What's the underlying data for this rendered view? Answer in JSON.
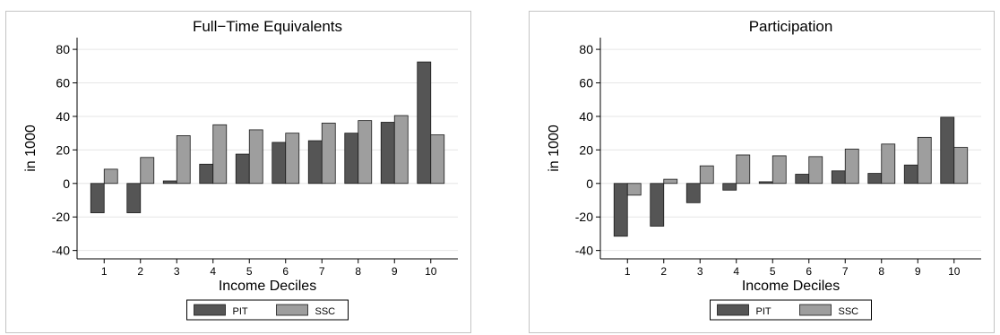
{
  "chart_data": [
    {
      "type": "bar",
      "title": "Full−Time Equivalents",
      "xlabel": "Income Deciles",
      "ylabel": "in 1000",
      "ylim": [
        -45,
        87
      ],
      "yticks": [
        -40,
        -20,
        0,
        20,
        40,
        60,
        80
      ],
      "categories": [
        "1",
        "2",
        "3",
        "4",
        "5",
        "6",
        "7",
        "8",
        "9",
        "10"
      ],
      "series": [
        {
          "name": "PIT",
          "color": "#555555",
          "values": [
            -17.5,
            -17.5,
            1.5,
            11.5,
            17.5,
            24.5,
            25.5,
            30,
            36.5,
            72.5
          ]
        },
        {
          "name": "SSC",
          "color": "#9e9e9e",
          "values": [
            8.5,
            15.5,
            28.5,
            35,
            32,
            30,
            36,
            37.5,
            40.5,
            29
          ]
        }
      ],
      "grid": true,
      "legend_position": "bottom"
    },
    {
      "type": "bar",
      "title": "Participation",
      "xlabel": "Income Deciles",
      "ylabel": "in 1000",
      "ylim": [
        -45,
        87
      ],
      "yticks": [
        -40,
        -20,
        0,
        20,
        40,
        60,
        80
      ],
      "categories": [
        "1",
        "2",
        "3",
        "4",
        "5",
        "6",
        "7",
        "8",
        "9",
        "10"
      ],
      "series": [
        {
          "name": "PIT",
          "color": "#555555",
          "values": [
            -31.5,
            -25.5,
            -11.5,
            -4,
            1,
            5.5,
            7.5,
            6,
            11,
            39.5
          ]
        },
        {
          "name": "SSC",
          "color": "#9e9e9e",
          "values": [
            -7,
            2.5,
            10.5,
            17,
            16.5,
            16,
            20.5,
            23.5,
            27.5,
            21.5
          ]
        }
      ],
      "grid": true,
      "legend_position": "bottom"
    }
  ]
}
